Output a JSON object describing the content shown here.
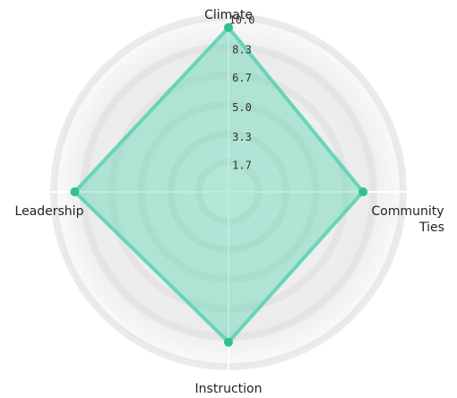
{
  "chart_data": {
    "type": "radar",
    "categories": [
      "Climate",
      "Community Ties",
      "Instruction",
      "Leadership"
    ],
    "series": [
      {
        "color": "#4fd1ac",
        "values": [
          9.4,
          7.7,
          8.6,
          8.8
        ]
      }
    ],
    "rlim": [
      0,
      10
    ],
    "rticks": [
      1.7,
      3.3,
      {
        "value": 5,
        "label": "5.0"
      },
      6.7,
      8.3,
      {
        "value": 10,
        "label": "10.0"
      }
    ],
    "grid": true
  }
}
